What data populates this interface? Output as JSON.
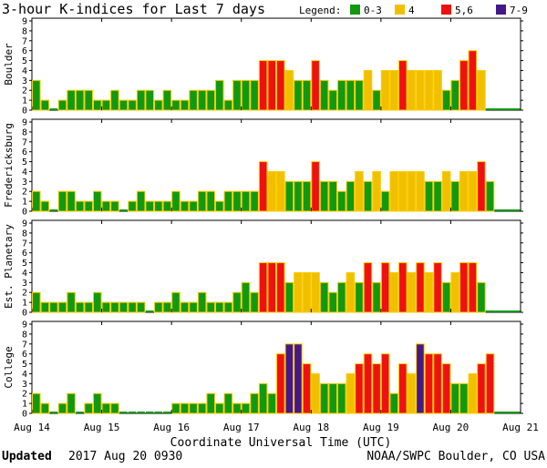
{
  "header": {
    "title": "3-hour K-indices for Last 7 days",
    "legend_label": "Legend:",
    "legend": [
      {
        "label": "0-3",
        "color": "#119911"
      },
      {
        "label": "4",
        "color": "#f0c000"
      },
      {
        "label": "5,6",
        "color": "#ee1111"
      },
      {
        "label": "7-9",
        "color": "#44178a"
      }
    ]
  },
  "footer": {
    "updated_label": "Updated",
    "updated_value": "2017 Aug 20 0930",
    "credit": "NOAA/SWPC Boulder, CO USA"
  },
  "chart_data": {
    "type": "bar",
    "xlabel": "Coordinate Universal Time (UTC)",
    "x_tick_labels": [
      "Aug 14",
      "Aug 15",
      "Aug 16",
      "Aug 17",
      "Aug 18",
      "Aug 19",
      "Aug 20",
      "Aug 21"
    ],
    "y_ticks": [
      0,
      1,
      2,
      3,
      4,
      5,
      6,
      7,
      8,
      9
    ],
    "ylim": [
      0,
      9
    ],
    "interval_hours": 3,
    "grid": false,
    "series": [
      {
        "name": "Boulder",
        "values": [
          3,
          1,
          0,
          1,
          2,
          2,
          2,
          1,
          1,
          2,
          1,
          1,
          2,
          2,
          1,
          2,
          1,
          1,
          2,
          2,
          2,
          3,
          1,
          3,
          3,
          3,
          5,
          5,
          5,
          4,
          3,
          3,
          5,
          3,
          2,
          3,
          3,
          3,
          4,
          2,
          4,
          4,
          5,
          4,
          4,
          4,
          4,
          2,
          3,
          5,
          6,
          4
        ]
      },
      {
        "name": "Fredericksburg",
        "values": [
          2,
          1,
          0,
          2,
          2,
          1,
          1,
          2,
          1,
          1,
          0,
          1,
          2,
          1,
          1,
          1,
          2,
          1,
          1,
          2,
          2,
          1,
          2,
          2,
          2,
          2,
          5,
          4,
          4,
          3,
          3,
          3,
          5,
          3,
          3,
          2,
          3,
          4,
          3,
          4,
          2,
          4,
          4,
          4,
          4,
          3,
          3,
          4,
          3,
          4,
          4,
          5,
          3
        ]
      },
      {
        "name": "Est. Planetary",
        "values": [
          2,
          1,
          1,
          1,
          2,
          1,
          1,
          2,
          1,
          1,
          1,
          1,
          1,
          0,
          1,
          1,
          2,
          1,
          1,
          2,
          1,
          1,
          1,
          2,
          3,
          2,
          5,
          5,
          5,
          3,
          4,
          4,
          4,
          3,
          2,
          3,
          4,
          3,
          5,
          3,
          5,
          4,
          5,
          4,
          5,
          4,
          5,
          3,
          4,
          5,
          5,
          3
        ]
      },
      {
        "name": "College",
        "values": [
          2,
          1,
          0,
          1,
          2,
          0,
          1,
          2,
          1,
          1,
          0,
          0,
          0,
          0,
          0,
          0,
          1,
          1,
          1,
          1,
          2,
          1,
          2,
          1,
          1,
          2,
          3,
          2,
          6,
          7,
          7,
          5,
          4,
          3,
          3,
          3,
          4,
          5,
          6,
          5,
          6,
          2,
          5,
          4,
          7,
          6,
          6,
          5,
          3,
          3,
          4,
          5,
          6
        ]
      }
    ]
  }
}
